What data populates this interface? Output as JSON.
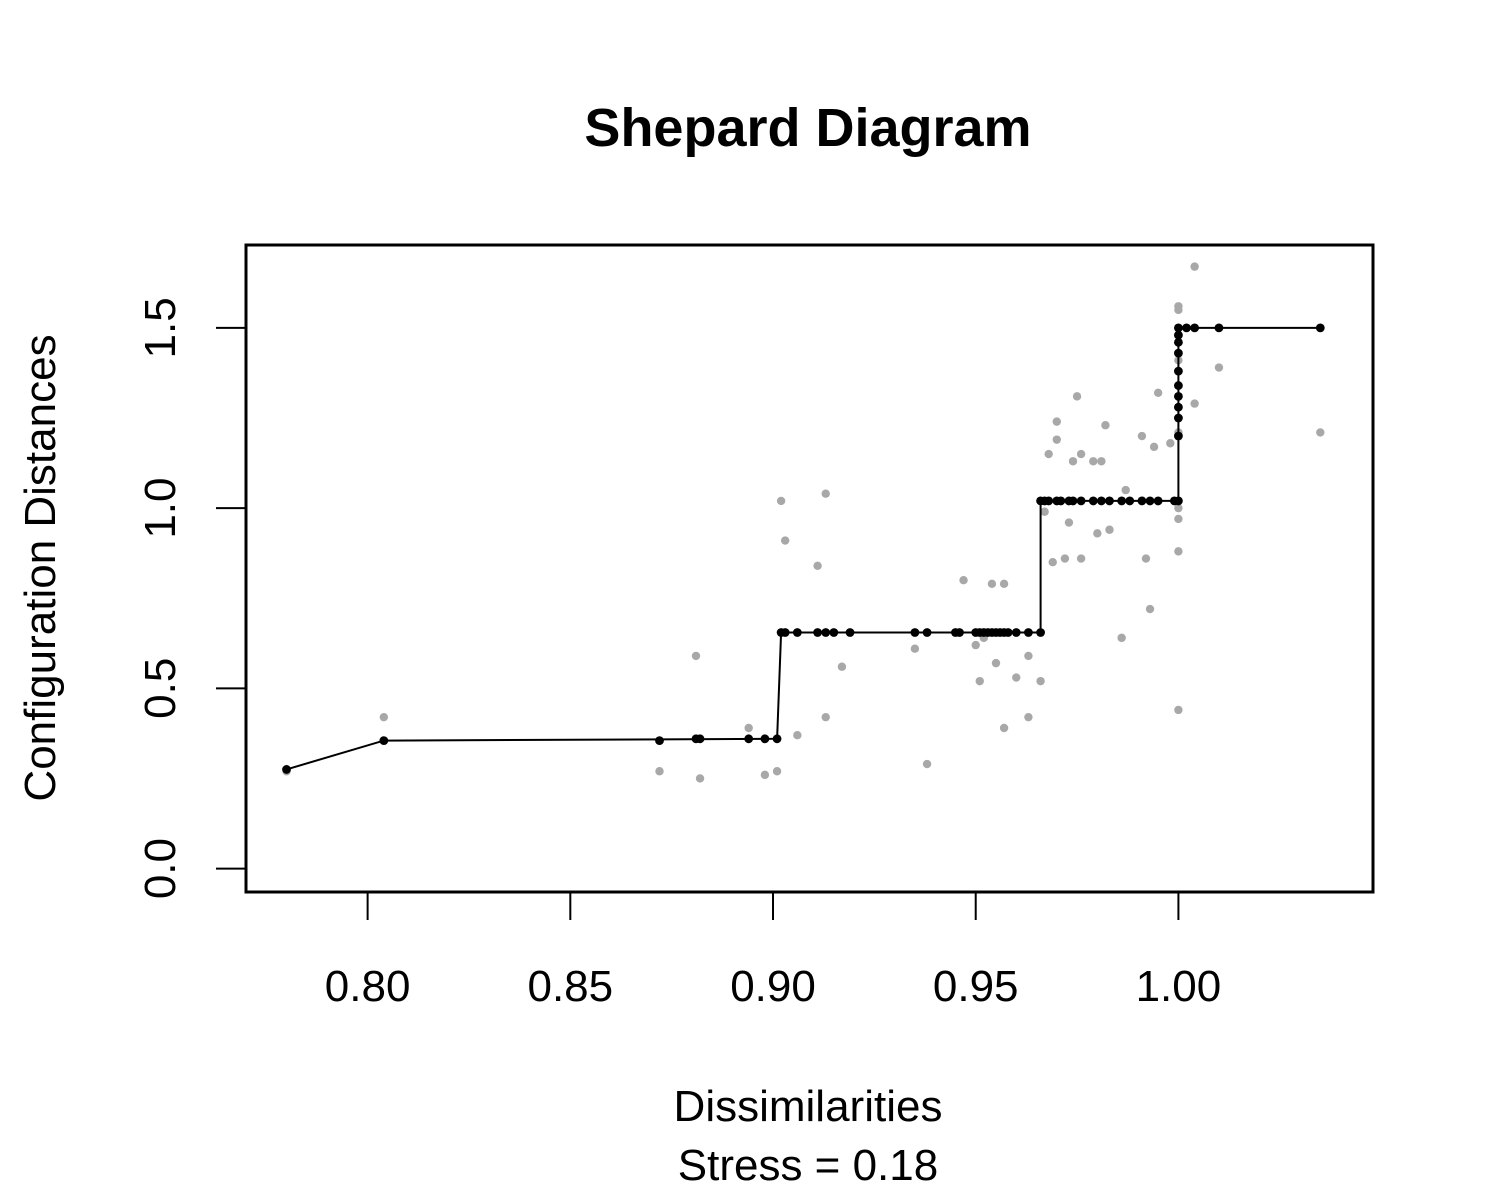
{
  "chart_data": {
    "type": "scatter",
    "title": "Shepard Diagram",
    "xlabel": "Dissimilarities",
    "subtitle": "Stress = 0.18",
    "ylabel": "Configuration Distances",
    "xlim": [
      0.77,
      1.048
    ],
    "ylim": [
      -0.065,
      1.73
    ],
    "x_ticks": [
      0.8,
      0.85,
      0.9,
      0.95,
      1.0
    ],
    "x_tick_labels": [
      "0.80",
      "0.85",
      "0.90",
      "0.95",
      "1.00"
    ],
    "y_ticks": [
      0.0,
      0.5,
      1.0,
      1.5
    ],
    "y_tick_labels": [
      "0.0",
      "0.5",
      "1.0",
      "1.5"
    ],
    "grid": false,
    "colors": {
      "observed": "#a8a8a8",
      "fitted": "#000000",
      "axes": "#000000"
    },
    "series": [
      {
        "points": [
          [
            0.78,
            0.27
          ],
          [
            0.804,
            0.42
          ],
          [
            0.872,
            0.27
          ],
          [
            0.881,
            0.59
          ],
          [
            0.882,
            0.25
          ],
          [
            0.894,
            0.39
          ],
          [
            0.898,
            0.26
          ],
          [
            0.901,
            0.27
          ],
          [
            0.902,
            1.02
          ],
          [
            0.903,
            0.91
          ],
          [
            0.906,
            0.37
          ],
          [
            0.911,
            0.84
          ],
          [
            0.913,
            0.42
          ],
          [
            0.913,
            1.04
          ],
          [
            0.917,
            0.56
          ],
          [
            0.935,
            0.61
          ],
          [
            0.938,
            0.29
          ],
          [
            0.947,
            0.8
          ],
          [
            0.95,
            0.62
          ],
          [
            0.951,
            0.52
          ],
          [
            0.952,
            0.64
          ],
          [
            0.954,
            0.79
          ],
          [
            0.955,
            0.57
          ],
          [
            0.957,
            0.79
          ],
          [
            0.957,
            0.39
          ],
          [
            0.96,
            0.53
          ],
          [
            0.963,
            0.59
          ],
          [
            0.963,
            0.42
          ],
          [
            0.966,
            0.52
          ],
          [
            0.967,
            0.99
          ],
          [
            0.968,
            1.15
          ],
          [
            0.969,
            0.85
          ],
          [
            0.97,
            1.19
          ],
          [
            0.97,
            1.24
          ],
          [
            0.972,
            0.86
          ],
          [
            0.973,
            0.96
          ],
          [
            0.974,
            1.13
          ],
          [
            0.975,
            1.31
          ],
          [
            0.976,
            1.15
          ],
          [
            0.976,
            0.86
          ],
          [
            0.979,
            1.13
          ],
          [
            0.98,
            0.93
          ],
          [
            0.981,
            1.13
          ],
          [
            0.982,
            1.23
          ],
          [
            0.983,
            0.94
          ],
          [
            0.986,
            0.64
          ],
          [
            0.987,
            1.05
          ],
          [
            0.991,
            1.2
          ],
          [
            0.992,
            0.86
          ],
          [
            0.993,
            0.72
          ],
          [
            0.994,
            1.17
          ],
          [
            0.995,
            1.32
          ],
          [
            0.998,
            1.18
          ],
          [
            1.0,
            0.44
          ],
          [
            1.0,
            0.88
          ],
          [
            1.0,
            0.97
          ],
          [
            1.0,
            1.0
          ],
          [
            1.0,
            1.21
          ],
          [
            1.0,
            1.28
          ],
          [
            1.0,
            1.41
          ],
          [
            1.0,
            1.55
          ],
          [
            1.0,
            1.56
          ],
          [
            1.004,
            1.29
          ],
          [
            1.004,
            1.67
          ],
          [
            1.01,
            1.39
          ],
          [
            1.035,
            1.21
          ]
        ]
      },
      {
        "points": [
          [
            0.78,
            0.275
          ],
          [
            0.804,
            0.355
          ],
          [
            0.872,
            0.355
          ],
          [
            0.881,
            0.36
          ],
          [
            0.882,
            0.36
          ],
          [
            0.894,
            0.36
          ],
          [
            0.898,
            0.36
          ],
          [
            0.901,
            0.36
          ],
          [
            0.902,
            0.655
          ],
          [
            0.903,
            0.655
          ],
          [
            0.906,
            0.655
          ],
          [
            0.911,
            0.655
          ],
          [
            0.913,
            0.655
          ],
          [
            0.915,
            0.655
          ],
          [
            0.919,
            0.655
          ],
          [
            0.935,
            0.655
          ],
          [
            0.938,
            0.655
          ],
          [
            0.945,
            0.655
          ],
          [
            0.946,
            0.655
          ],
          [
            0.95,
            0.655
          ],
          [
            0.951,
            0.655
          ],
          [
            0.952,
            0.655
          ],
          [
            0.953,
            0.655
          ],
          [
            0.954,
            0.655
          ],
          [
            0.955,
            0.655
          ],
          [
            0.956,
            0.655
          ],
          [
            0.957,
            0.655
          ],
          [
            0.958,
            0.655
          ],
          [
            0.96,
            0.655
          ],
          [
            0.963,
            0.655
          ],
          [
            0.966,
            0.655
          ],
          [
            0.966,
            1.02
          ],
          [
            0.967,
            1.02
          ],
          [
            0.968,
            1.02
          ],
          [
            0.97,
            1.02
          ],
          [
            0.971,
            1.02
          ],
          [
            0.973,
            1.02
          ],
          [
            0.974,
            1.02
          ],
          [
            0.976,
            1.02
          ],
          [
            0.979,
            1.02
          ],
          [
            0.981,
            1.02
          ],
          [
            0.983,
            1.02
          ],
          [
            0.986,
            1.02
          ],
          [
            0.988,
            1.02
          ],
          [
            0.991,
            1.02
          ],
          [
            0.993,
            1.02
          ],
          [
            0.995,
            1.02
          ],
          [
            0.999,
            1.02
          ],
          [
            1.0,
            1.02
          ],
          [
            1.0,
            1.2
          ],
          [
            1.0,
            1.25
          ],
          [
            1.0,
            1.28
          ],
          [
            1.0,
            1.31
          ],
          [
            1.0,
            1.34
          ],
          [
            1.0,
            1.38
          ],
          [
            1.0,
            1.43
          ],
          [
            1.0,
            1.46
          ],
          [
            1.0,
            1.48
          ],
          [
            1.0,
            1.5
          ],
          [
            1.002,
            1.5
          ],
          [
            1.004,
            1.5
          ],
          [
            1.01,
            1.5
          ],
          [
            1.035,
            1.5
          ]
        ]
      }
    ],
    "step_line": [
      [
        0.78,
        0.275
      ],
      [
        0.804,
        0.355
      ],
      [
        0.901,
        0.36
      ],
      [
        0.902,
        0.655
      ],
      [
        0.966,
        0.655
      ],
      [
        0.966,
        1.02
      ],
      [
        1.0,
        1.02
      ],
      [
        1.0,
        1.5
      ],
      [
        1.035,
        1.5
      ]
    ]
  }
}
